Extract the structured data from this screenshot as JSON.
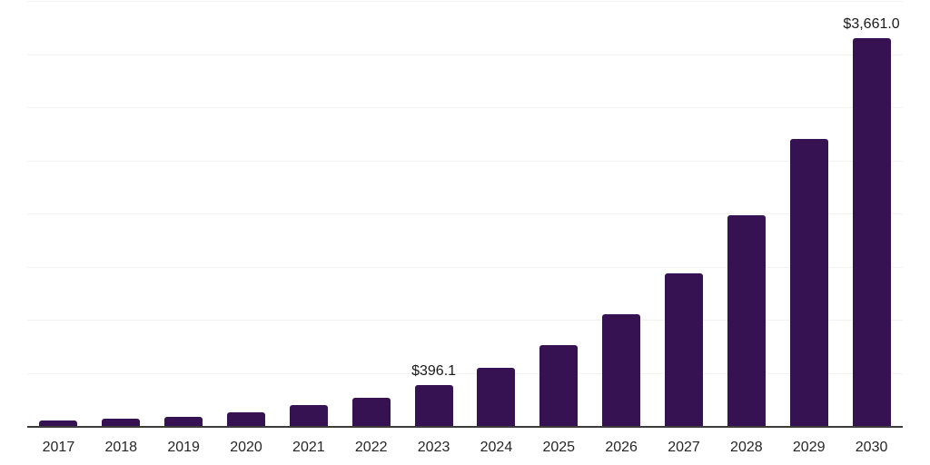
{
  "chart_data": {
    "type": "bar",
    "title": "",
    "xlabel": "",
    "ylabel": "",
    "categories": [
      "2017",
      "2018",
      "2019",
      "2020",
      "2021",
      "2022",
      "2023",
      "2024",
      "2025",
      "2026",
      "2027",
      "2028",
      "2029",
      "2030"
    ],
    "values": [
      60,
      77,
      98,
      134,
      203,
      277,
      396.1,
      553,
      772,
      1058,
      1443,
      1988,
      2712,
      3661
    ],
    "ylim": [
      0,
      4000
    ],
    "gridline_step": 500,
    "grid": "horizontal",
    "y_axis_labels_visible": false,
    "legend_position": "none",
    "annotations": [
      {
        "category": "2023",
        "text": "$396.1"
      },
      {
        "category": "2030",
        "text": "$3,661.0"
      }
    ]
  },
  "colors": {
    "bar": "#371252",
    "axis_line": "#3c3c3c",
    "gridline": "#f2f2f2",
    "tick_label": "#262626",
    "annotation_label": "#1a1a1a",
    "background": "#ffffff"
  }
}
